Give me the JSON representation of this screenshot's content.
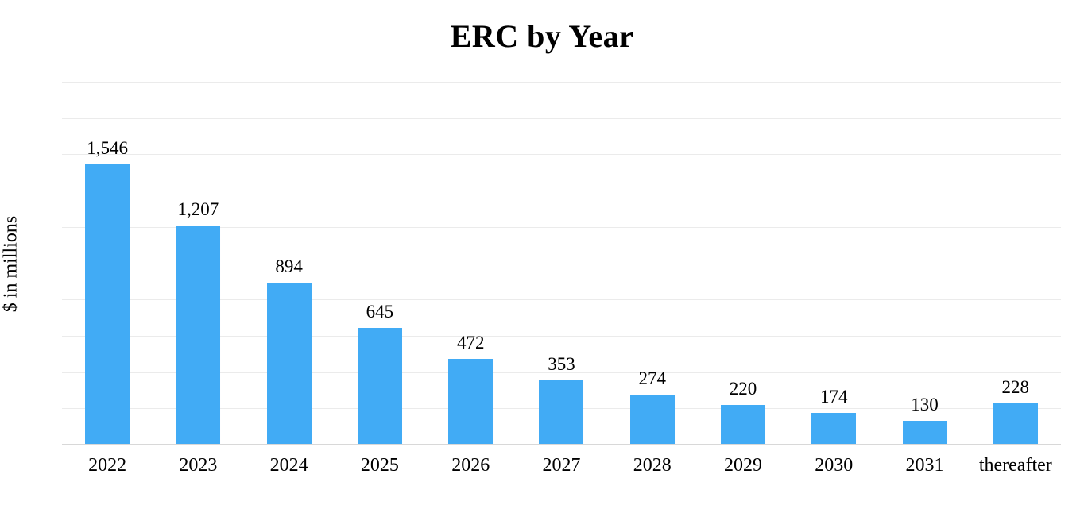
{
  "title": "ERC by Year",
  "y_axis_label": "$ in millions",
  "colors": {
    "background": "#ffffff",
    "bar": "#41abf5",
    "gridline": "#ebebeb",
    "axis_line": "#d8d8d8",
    "text": "#000000"
  },
  "chart_data": {
    "type": "bar",
    "title": "ERC by Year",
    "xlabel": "",
    "ylabel": "$ in millions",
    "categories": [
      "2022",
      "2023",
      "2024",
      "2025",
      "2026",
      "2027",
      "2028",
      "2029",
      "2030",
      "2031",
      "thereafter"
    ],
    "values": [
      1546,
      1207,
      894,
      645,
      472,
      353,
      274,
      220,
      174,
      130,
      228
    ],
    "value_labels": [
      "1,546",
      "1,207",
      "894",
      "645",
      "472",
      "353",
      "274",
      "220",
      "174",
      "130",
      "228"
    ],
    "ylim": [
      0,
      2000
    ],
    "gridline_interval": 200,
    "grid": true,
    "y_tick_labels_shown": false,
    "legend": false,
    "data_labels_position": "above-bar"
  }
}
